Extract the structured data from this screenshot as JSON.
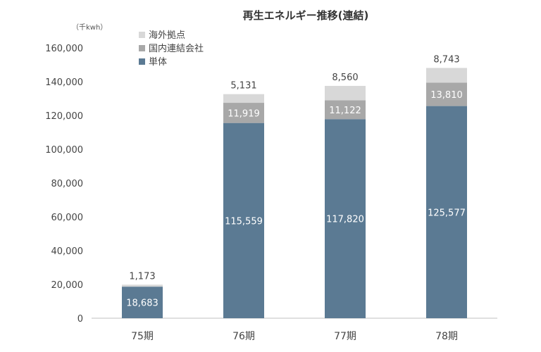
{
  "chart_data": {
    "type": "bar",
    "stacked": true,
    "title": "再生エネルギー推移(連結)",
    "unit_label": "（千kwh）",
    "categories": [
      "75期",
      "76期",
      "77期",
      "78期"
    ],
    "series": [
      {
        "name": "単体",
        "values": [
          18683,
          115559,
          117820,
          125577
        ],
        "color": "#5b7a93"
      },
      {
        "name": "国内連結会社",
        "values": [
          0,
          11919,
          11122,
          13810
        ],
        "color": "#a8a8a8"
      },
      {
        "name": "海外拠点",
        "values": [
          1173,
          5131,
          8560,
          8743
        ],
        "color": "#d8d8d8"
      }
    ],
    "data_labels": {
      "単体": [
        "18,683",
        "115,559",
        "117,820",
        "125,577"
      ],
      "国内連結会社": [
        "",
        "11,919",
        "11,122",
        "13,810"
      ],
      "海外拠点": [
        "1,173",
        "5,131",
        "8,560",
        "8,743"
      ]
    },
    "legend": [
      "海外拠点",
      "国内連結会社",
      "単体"
    ],
    "ylim": [
      0,
      160000
    ],
    "yticks": [
      0,
      20000,
      40000,
      60000,
      80000,
      100000,
      120000,
      140000,
      160000
    ],
    "ytick_labels": [
      "0",
      "20,000",
      "40,000",
      "60,000",
      "80,000",
      "100,000",
      "120,000",
      "140,000",
      "160,000"
    ],
    "xlabel": "",
    "ylabel": ""
  }
}
